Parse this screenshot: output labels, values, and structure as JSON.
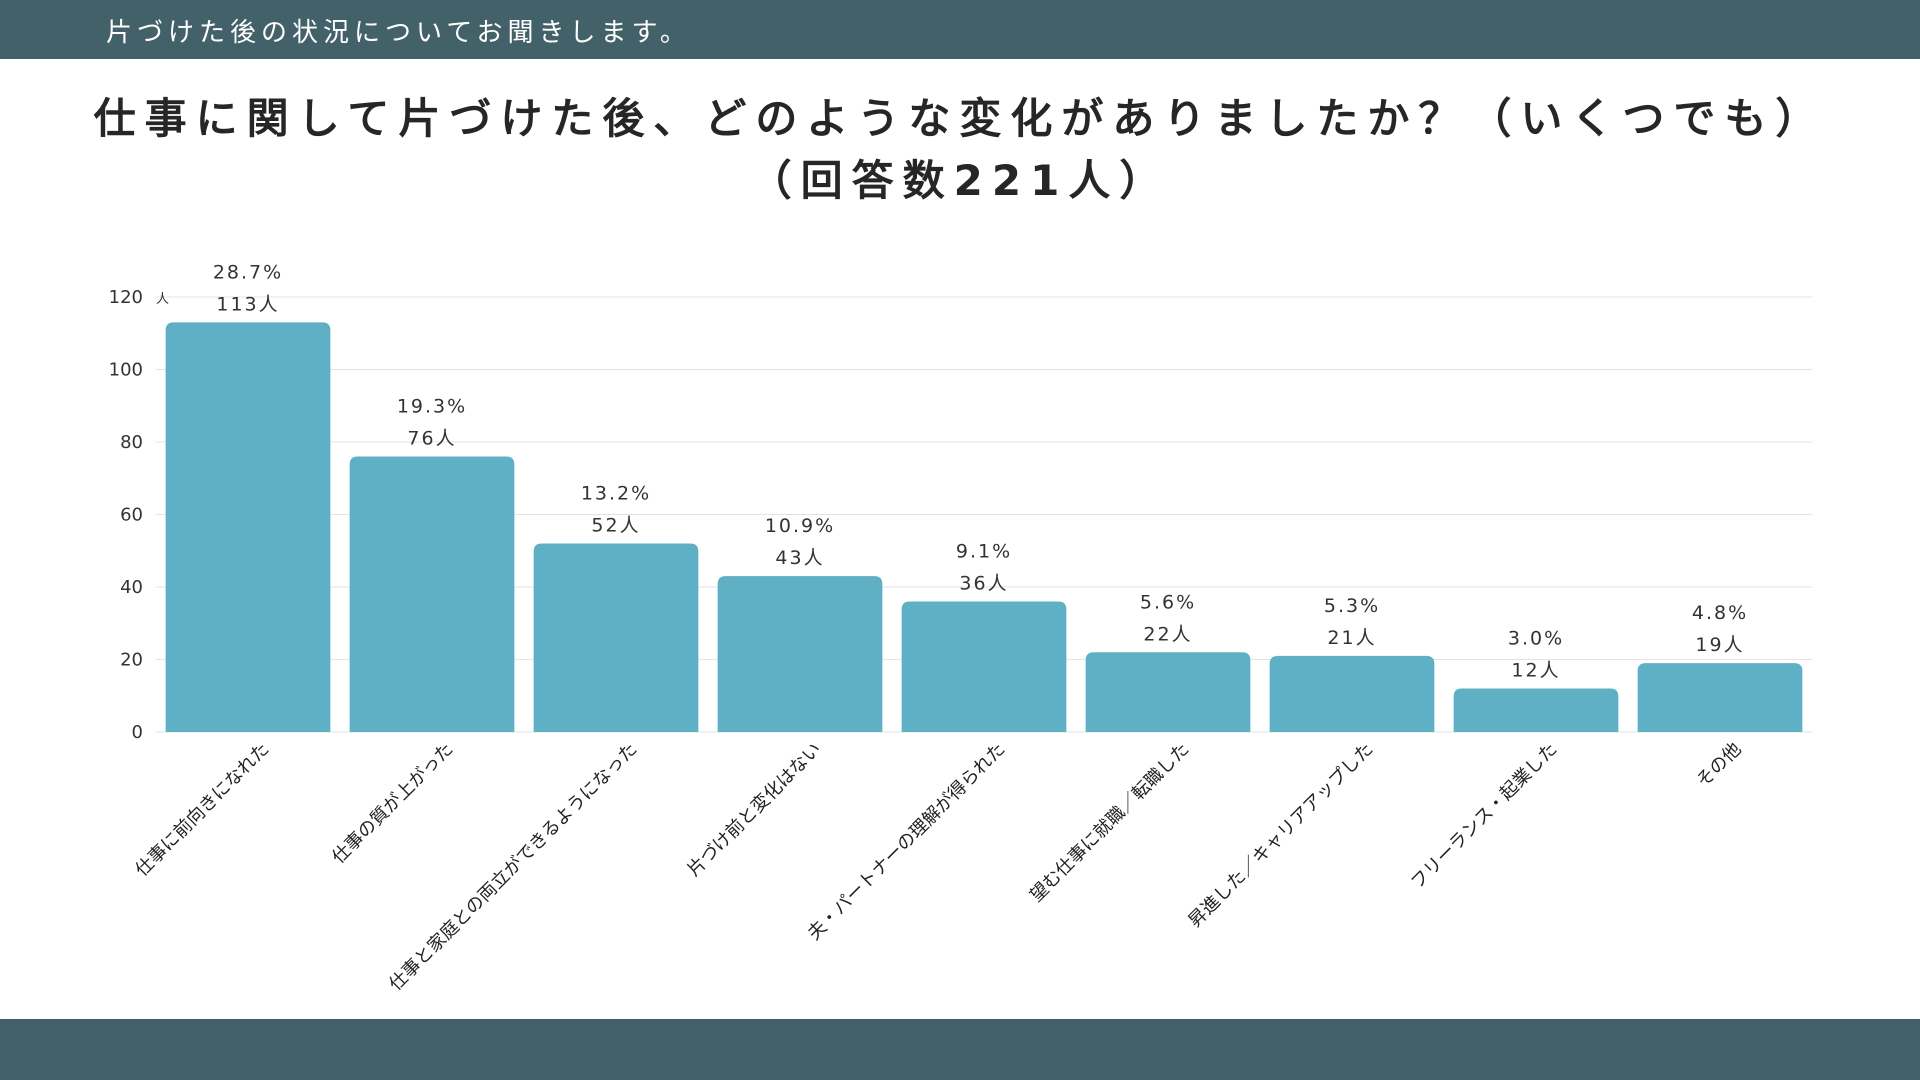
{
  "header": {
    "subtitle": "片づけた後の状況についてお聞きします。"
  },
  "colors": {
    "bar": "#5fb0c4",
    "header_band": "#436169",
    "grid": "#e3e3e3"
  },
  "chart_data": {
    "type": "bar",
    "title_lines": [
      "仕事に関して片づけた後、どのような変化がありましたか？（いくつでも）",
      "（回答数221人）"
    ],
    "y_unit_label": "人",
    "ylim": [
      0,
      120
    ],
    "yticks": [
      0,
      20,
      40,
      60,
      80,
      100,
      120
    ],
    "grid": true,
    "categories": [
      "仕事に前向きになれた",
      "仕事の質が上がった",
      "仕事と家庭との両立ができるようになった",
      "片づけ前と変化はない",
      "夫・パートナーの理解が得られた",
      "望む仕事に就職／転職した",
      "昇進した／キャリアアップした",
      "フリーランス・起業した",
      "その他"
    ],
    "values": [
      113,
      76,
      52,
      43,
      36,
      22,
      21,
      12,
      19
    ],
    "percent_labels": [
      "28.7%",
      "19.3%",
      "13.2%",
      "10.9%",
      "9.1%",
      "5.6%",
      "5.3%",
      "3.0%",
      "4.8%"
    ],
    "count_labels": [
      "113人",
      "76人",
      "52人",
      "43人",
      "36人",
      "22人",
      "21人",
      "12人",
      "19人"
    ]
  }
}
